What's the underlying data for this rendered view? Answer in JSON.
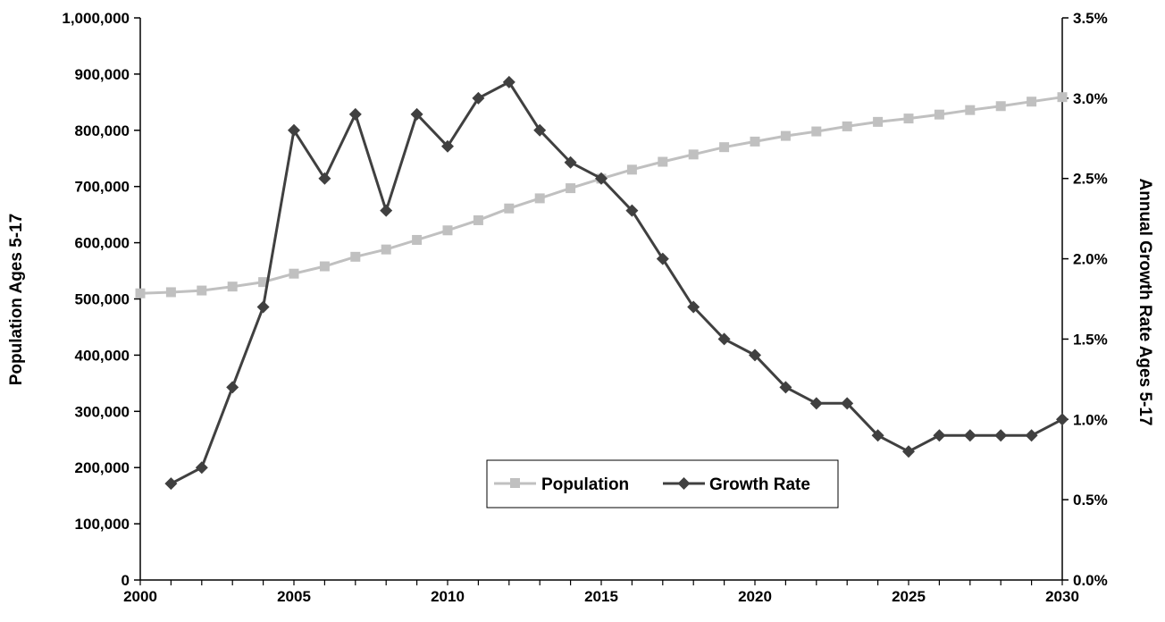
{
  "chart_data": {
    "type": "line",
    "x": [
      2000,
      2001,
      2002,
      2003,
      2004,
      2005,
      2006,
      2007,
      2008,
      2009,
      2010,
      2011,
      2012,
      2013,
      2014,
      2015,
      2016,
      2017,
      2018,
      2019,
      2020,
      2021,
      2022,
      2023,
      2024,
      2025,
      2026,
      2027,
      2028,
      2029,
      2030
    ],
    "xticks": [
      "2000",
      "2005",
      "2010",
      "2015",
      "2020",
      "2025",
      "2030"
    ],
    "xlim": [
      2000,
      2030
    ],
    "ylabel": "Population Ages 5-17",
    "ylim": [
      0,
      1000000
    ],
    "yticks": [
      "0",
      "100,000",
      "200,000",
      "300,000",
      "400,000",
      "500,000",
      "600,000",
      "700,000",
      "800,000",
      "900,000",
      "1,000,000"
    ],
    "y2label": "Annual Growth Rate Ages 5-17",
    "y2lim": [
      0,
      3.5
    ],
    "y2ticks": [
      "0.0%",
      "0.5%",
      "1.0%",
      "1.5%",
      "2.0%",
      "2.5%",
      "3.0%",
      "3.5%"
    ],
    "grid": false,
    "legend_position": "bottom-center",
    "series": [
      {
        "name": "Population",
        "axis": "left",
        "marker": "square",
        "color": "#c0c0c0",
        "x": [
          2000,
          2001,
          2002,
          2003,
          2004,
          2005,
          2006,
          2007,
          2008,
          2009,
          2010,
          2011,
          2012,
          2013,
          2014,
          2015,
          2016,
          2017,
          2018,
          2019,
          2020,
          2021,
          2022,
          2023,
          2024,
          2025,
          2026,
          2027,
          2028,
          2029,
          2030
        ],
        "values": [
          510000,
          512000,
          515000,
          522000,
          530000,
          545000,
          558000,
          575000,
          588000,
          605000,
          622000,
          640000,
          661000,
          679000,
          697000,
          714000,
          730000,
          744000,
          757000,
          770000,
          780000,
          790000,
          798000,
          807000,
          815000,
          821000,
          828000,
          836000,
          843000,
          851000,
          859000
        ]
      },
      {
        "name": "Growth Rate",
        "axis": "right",
        "marker": "diamond",
        "color": "#404040",
        "x": [
          2001,
          2002,
          2003,
          2004,
          2005,
          2006,
          2007,
          2008,
          2009,
          2010,
          2011,
          2012,
          2013,
          2014,
          2015,
          2016,
          2017,
          2018,
          2019,
          2020,
          2021,
          2022,
          2023,
          2024,
          2025,
          2026,
          2027,
          2028,
          2029,
          2030
        ],
        "values": [
          0.6,
          0.7,
          1.2,
          1.7,
          2.8,
          2.5,
          2.9,
          2.3,
          2.9,
          2.7,
          3.0,
          3.1,
          2.8,
          2.6,
          2.5,
          2.3,
          2.0,
          1.7,
          1.5,
          1.4,
          1.2,
          1.1,
          1.1,
          0.9,
          0.8,
          0.9,
          0.9,
          0.9,
          0.9,
          1.0
        ]
      }
    ]
  }
}
